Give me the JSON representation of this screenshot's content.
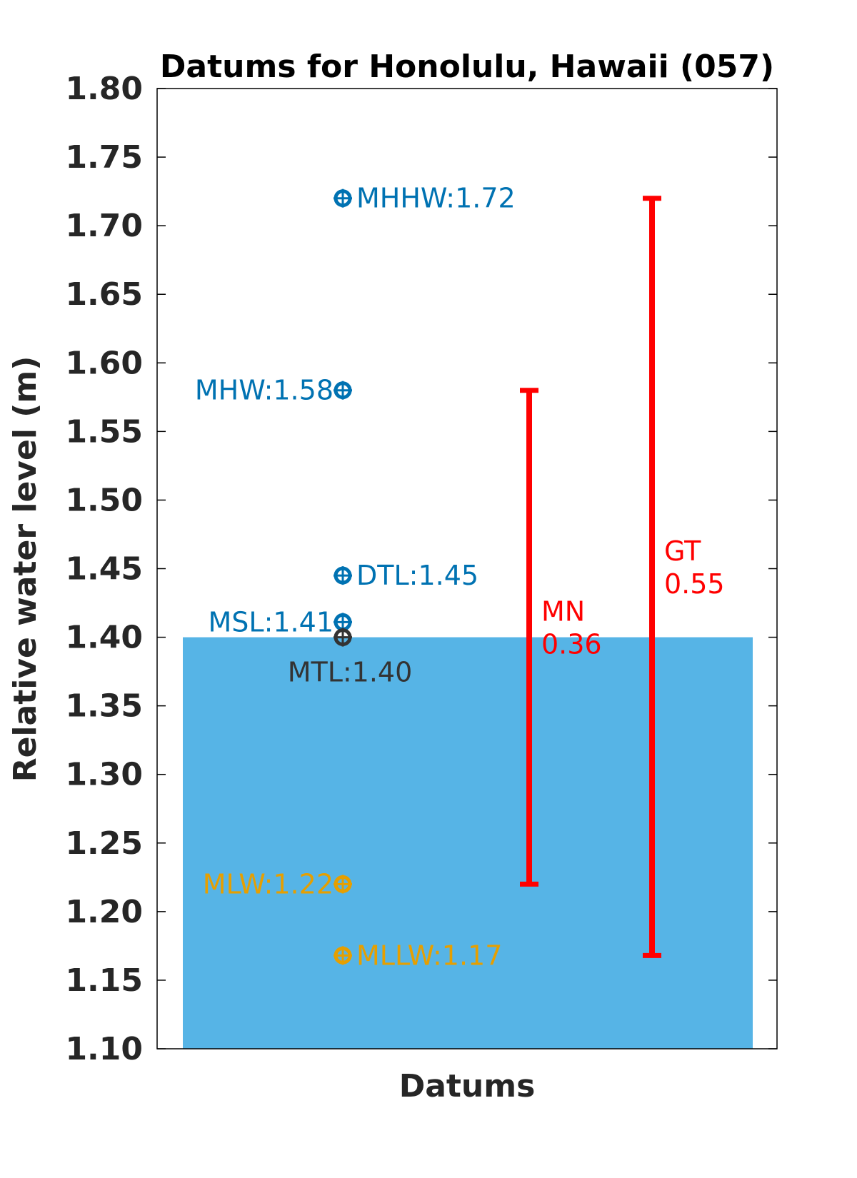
{
  "chart_data": {
    "type": "scatter",
    "title": "Datums for Honolulu, Hawaii (057)",
    "xlabel": "Datums",
    "ylabel": "Relative water level (m)",
    "ylim": [
      1.1,
      1.8
    ],
    "yticks": [
      "1.10",
      "1.15",
      "1.20",
      "1.25",
      "1.30",
      "1.35",
      "1.40",
      "1.45",
      "1.50",
      "1.55",
      "1.60",
      "1.65",
      "1.70",
      "1.75",
      "1.80"
    ],
    "grid": false,
    "water_fill": {
      "from": 1.1,
      "to": 1.4,
      "color": "#56B4E6"
    },
    "datums": [
      {
        "name": "MHHW",
        "label": "MHHW:1.72",
        "value": 1.72,
        "color": "#0072B2",
        "label_side": "right"
      },
      {
        "name": "MHW",
        "label": "MHW:1.58",
        "value": 1.58,
        "color": "#0072B2",
        "label_side": "left"
      },
      {
        "name": "DTL",
        "label": "DTL:1.45",
        "value": 1.445,
        "color": "#0072B2",
        "label_side": "right"
      },
      {
        "name": "MSL",
        "label": "MSL:1.41",
        "value": 1.411,
        "color": "#0072B2",
        "label_side": "left"
      },
      {
        "name": "MTL",
        "label": "MTL:1.40",
        "value": 1.4,
        "color": "#333333",
        "label_side": "below"
      },
      {
        "name": "MLW",
        "label": "MLW:1.22",
        "value": 1.22,
        "color": "#E69F00",
        "label_side": "left"
      },
      {
        "name": "MLLW",
        "label": "MLLW:1.17",
        "value": 1.168,
        "color": "#E69F00",
        "label_side": "right"
      }
    ],
    "ranges": [
      {
        "name": "MN",
        "label_line1": "MN",
        "label_line2": "0.36",
        "low": 1.22,
        "high": 1.58,
        "color": "#FF0000"
      },
      {
        "name": "GT",
        "label_line1": "GT",
        "label_line2": "0.55",
        "low": 1.168,
        "high": 1.72,
        "color": "#FF0000"
      }
    ]
  }
}
